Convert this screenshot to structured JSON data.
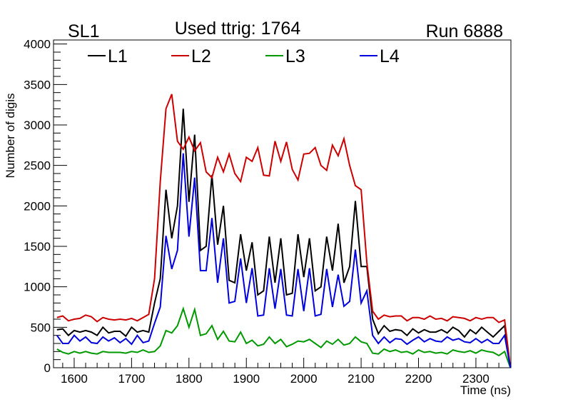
{
  "chart_data": {
    "type": "line",
    "title_left": "SL1",
    "title": "Used ttrig: 1764",
    "title_right": "Run 6888",
    "xlabel": "Time (ns)",
    "ylabel": "Number of digis",
    "xlim": [
      1564,
      2361
    ],
    "ylim": [
      0,
      4050
    ],
    "x_start": 1570,
    "x_step": 10,
    "x_ticks": [
      "1600",
      "1700",
      "1800",
      "1900",
      "2000",
      "2100",
      "2200",
      "2300"
    ],
    "y_ticks": [
      "0",
      "500",
      "1000",
      "1500",
      "2000",
      "2500",
      "3000",
      "3500",
      "4000"
    ],
    "legend_position": "top-left",
    "series": [
      {
        "name": "L1",
        "color": "#000000",
        "values": [
          470,
          480,
          400,
          460,
          440,
          460,
          440,
          400,
          500,
          430,
          450,
          450,
          390,
          500,
          440,
          460,
          440,
          800,
          1100,
          2200,
          1600,
          2000,
          3200,
          2050,
          2880,
          1450,
          1500,
          2380,
          1520,
          2000,
          1080,
          1050,
          1650,
          1200,
          1550,
          900,
          950,
          1620,
          1050,
          1600,
          900,
          920,
          1650,
          1120,
          1600,
          950,
          1000,
          1620,
          1200,
          1780,
          1050,
          1250,
          2060,
          1250,
          1250,
          600,
          420,
          520,
          450,
          470,
          460,
          400,
          480,
          430,
          470,
          440,
          440,
          470,
          430,
          500,
          460,
          380,
          470,
          420,
          500,
          440,
          380,
          450,
          520,
          0
        ]
      },
      {
        "name": "L2",
        "color": "#cc0000",
        "values": [
          620,
          640,
          580,
          600,
          610,
          650,
          630,
          570,
          620,
          600,
          590,
          600,
          590,
          610,
          580,
          620,
          660,
          1100,
          2300,
          3200,
          3380,
          2800,
          2700,
          2850,
          2680,
          2780,
          2420,
          2350,
          2600,
          2420,
          2640,
          2400,
          2300,
          2600,
          2550,
          2720,
          2380,
          2370,
          2800,
          2550,
          2790,
          2450,
          2320,
          2640,
          2650,
          2720,
          2500,
          2440,
          2750,
          2620,
          2830,
          2500,
          2250,
          2200,
          1300,
          700,
          600,
          650,
          630,
          640,
          640,
          580,
          620,
          620,
          600,
          640,
          600,
          610,
          580,
          630,
          620,
          610,
          580,
          620,
          600,
          620,
          620,
          560,
          590,
          0
        ]
      },
      {
        "name": "L3",
        "color": "#009900",
        "values": [
          230,
          190,
          170,
          200,
          180,
          200,
          180,
          170,
          200,
          190,
          190,
          190,
          180,
          200,
          190,
          220,
          190,
          200,
          270,
          460,
          430,
          520,
          730,
          500,
          720,
          400,
          420,
          520,
          350,
          450,
          330,
          320,
          440,
          300,
          340,
          270,
          290,
          380,
          300,
          350,
          260,
          290,
          330,
          320,
          350,
          300,
          250,
          330,
          290,
          350,
          280,
          300,
          380,
          320,
          300,
          180,
          170,
          230,
          200,
          220,
          190,
          200,
          170,
          220,
          190,
          200,
          180,
          190,
          170,
          220,
          200,
          190,
          210,
          180,
          220,
          200,
          190,
          150,
          200,
          0
        ]
      },
      {
        "name": "L4",
        "color": "#0000dd",
        "values": [
          400,
          300,
          300,
          400,
          330,
          380,
          310,
          300,
          380,
          330,
          370,
          310,
          360,
          290,
          400,
          310,
          330,
          550,
          750,
          1630,
          1220,
          1450,
          2650,
          1620,
          2350,
          1200,
          1200,
          1850,
          1050,
          1600,
          800,
          820,
          1350,
          800,
          1230,
          640,
          650,
          1230,
          730,
          1220,
          650,
          640,
          1220,
          700,
          1230,
          640,
          660,
          1220,
          750,
          1150,
          760,
          820,
          1460,
          800,
          950,
          400,
          300,
          380,
          310,
          360,
          350,
          290,
          340,
          380,
          320,
          360,
          330,
          320,
          380,
          340,
          360,
          320,
          310,
          360,
          310,
          350,
          300,
          300,
          400,
          0
        ]
      }
    ]
  }
}
